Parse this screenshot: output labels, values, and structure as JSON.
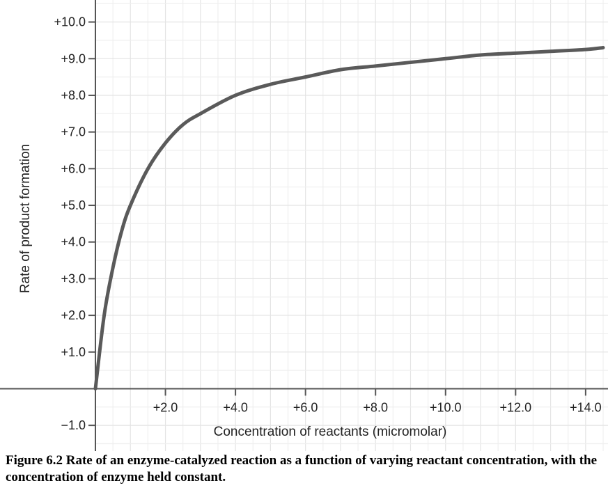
{
  "chart_data": {
    "type": "line",
    "xlabel": "Concentration of reactants (micromolar)",
    "ylabel": "Rate of product formation",
    "xlim": [
      0,
      14.5
    ],
    "ylim": [
      -1.7,
      10.6
    ],
    "x_ticks": [
      2,
      4,
      6,
      8,
      10,
      12,
      14
    ],
    "x_tick_labels": [
      "+2.0",
      "+4.0",
      "+6.0",
      "+8.0",
      "+10.0",
      "+12.0",
      "+14.0"
    ],
    "y_ticks": [
      10,
      9,
      8,
      7,
      6,
      5,
      4,
      3,
      2,
      1,
      -1
    ],
    "y_tick_labels": [
      "+10.0",
      "+9.0",
      "+8.0",
      "+7.0",
      "+6.0",
      "+5.0",
      "+4.0",
      "+3.0",
      "+2.0",
      "+1.0",
      "−1.0"
    ],
    "grid": true,
    "series": [
      {
        "x": [
          0,
          0.25,
          0.5,
          0.75,
          1.0,
          1.5,
          2.0,
          2.5,
          3.0,
          4.0,
          5.0,
          6.0,
          7.0,
          8.0,
          9.0,
          10.0,
          11.0,
          12.0,
          13.0,
          14.0,
          14.5
        ],
        "y": [
          0,
          2.0,
          3.3,
          4.3,
          5.0,
          6.0,
          6.7,
          7.2,
          7.5,
          8.0,
          8.3,
          8.5,
          8.7,
          8.8,
          8.9,
          9.0,
          9.1,
          9.15,
          9.2,
          9.25,
          9.3
        ],
        "color": "#5a5a5a"
      }
    ]
  },
  "caption": "Figure 6.2 Rate of an enzyme-catalyzed reaction as a function of varying reactant concentration, with the concentration of enzyme held constant."
}
